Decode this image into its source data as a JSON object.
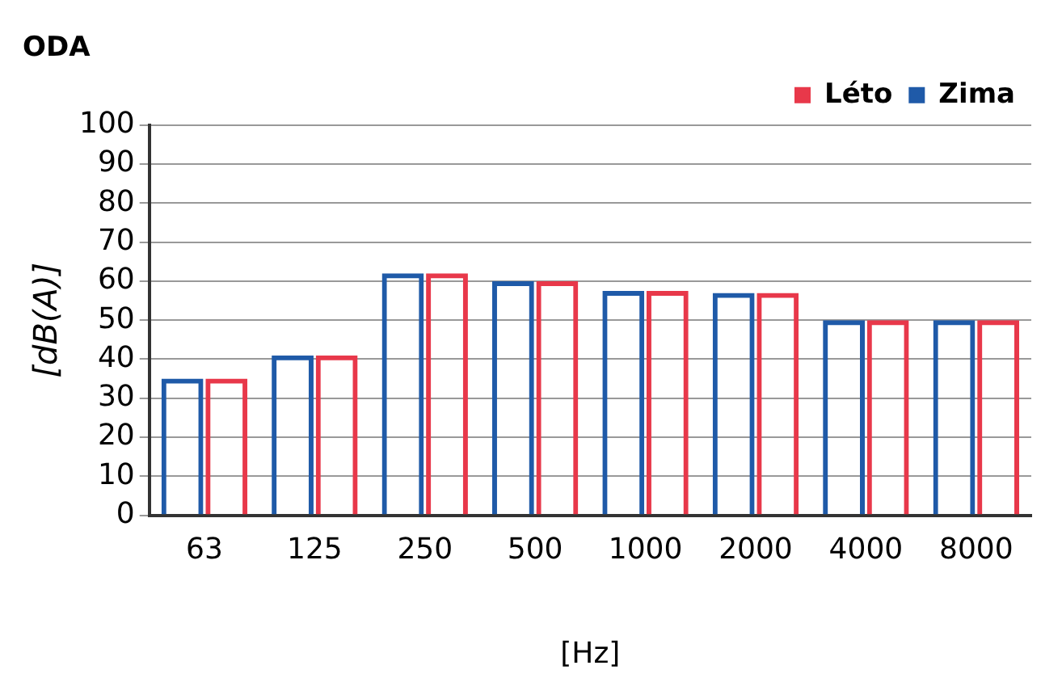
{
  "chart_data": {
    "type": "bar",
    "title": "ODA",
    "xlabel": "[Hz]",
    "ylabel": "[dB(A)]",
    "categories": [
      "63",
      "125",
      "250",
      "500",
      "1000",
      "2000",
      "4000",
      "8000"
    ],
    "series": [
      {
        "name": "Zima",
        "color": "#1f5aa8",
        "values": [
          35,
          41,
          62,
          60,
          57.5,
          57,
          50,
          50
        ]
      },
      {
        "name": "Léto",
        "color": "#e8384a",
        "values": [
          35,
          41,
          62,
          60,
          57.5,
          57,
          50,
          50
        ]
      }
    ],
    "ylim": [
      0,
      100
    ],
    "yticks": [
      0,
      10,
      20,
      30,
      40,
      50,
      60,
      70,
      80,
      90,
      100
    ],
    "grid": "y",
    "legend": "top right"
  }
}
